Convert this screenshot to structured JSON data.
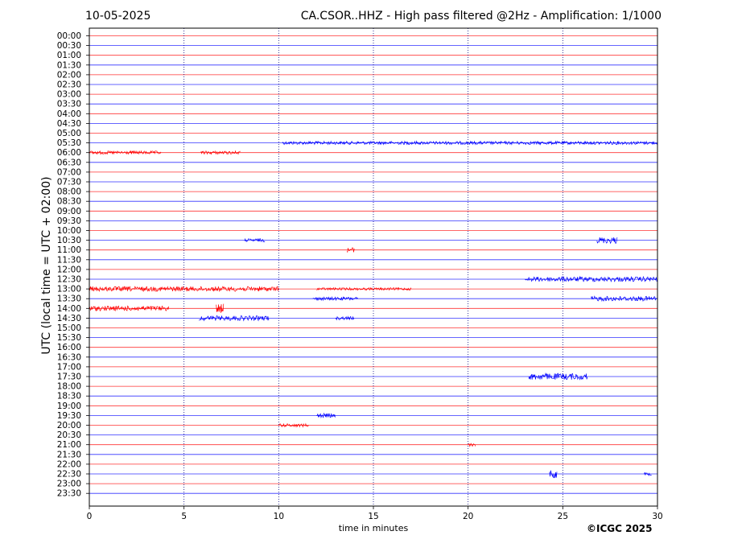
{
  "header": {
    "date": "10-05-2025",
    "title": "CA.CSOR..HHZ - High pass filtered @2Hz - Amplification: 1/1000"
  },
  "footer": {
    "copyright": "©ICGC 2025"
  },
  "chart_data": {
    "type": "line",
    "title": "CA.CSOR..HHZ - High pass filtered @2Hz - Amplification: 1/1000",
    "xlabel": "time in minutes",
    "ylabel": "UTC (local time = UTC + 02:00)",
    "xlim": [
      0,
      30
    ],
    "xticks": [
      0,
      5,
      10,
      15,
      20,
      25,
      30
    ],
    "vertical_gridlines_at": [
      5,
      10,
      15,
      20,
      25
    ],
    "row_labels": [
      "00:00",
      "00:30",
      "01:00",
      "01:30",
      "02:00",
      "02:30",
      "03:00",
      "03:30",
      "04:00",
      "04:30",
      "05:00",
      "05:30",
      "06:00",
      "06:30",
      "07:00",
      "07:30",
      "08:00",
      "08:30",
      "09:00",
      "09:30",
      "10:00",
      "10:30",
      "11:00",
      "11:30",
      "12:00",
      "12:30",
      "13:00",
      "13:30",
      "14:00",
      "14:30",
      "15:00",
      "15:30",
      "16:00",
      "16:30",
      "17:00",
      "17:30",
      "18:00",
      "18:30",
      "19:00",
      "19:30",
      "20:00",
      "20:30",
      "21:00",
      "21:30",
      "22:00",
      "22:30",
      "23:00",
      "23:30"
    ],
    "trace_colors": [
      "#ff0000",
      "#0000ff"
    ],
    "events": [
      {
        "row": "05:30",
        "start": 10.2,
        "end": 30,
        "amp": 2
      },
      {
        "row": "06:00",
        "start": 0,
        "end": 3.8,
        "amp": 2
      },
      {
        "row": "06:00",
        "start": 5.9,
        "end": 8,
        "amp": 2
      },
      {
        "row": "10:30",
        "start": 8.2,
        "end": 9.3,
        "amp": 2
      },
      {
        "row": "10:30",
        "start": 26.8,
        "end": 27.9,
        "amp": 4
      },
      {
        "row": "11:00",
        "start": 13.6,
        "end": 14,
        "amp": 3
      },
      {
        "row": "12:30",
        "start": 23,
        "end": 30,
        "amp": 3
      },
      {
        "row": "13:00",
        "start": 0,
        "end": 10,
        "amp": 3
      },
      {
        "row": "13:00",
        "start": 12,
        "end": 17,
        "amp": 1.5
      },
      {
        "row": "13:30",
        "start": 11.8,
        "end": 14.2,
        "amp": 2
      },
      {
        "row": "13:30",
        "start": 26.5,
        "end": 30,
        "amp": 3
      },
      {
        "row": "14:00",
        "start": 0,
        "end": 4.2,
        "amp": 3
      },
      {
        "row": "14:00",
        "start": 6.7,
        "end": 7.1,
        "amp": 6
      },
      {
        "row": "14:30",
        "start": 5.8,
        "end": 9.5,
        "amp": 3
      },
      {
        "row": "14:30",
        "start": 13,
        "end": 14,
        "amp": 2
      },
      {
        "row": "17:30",
        "start": 23.2,
        "end": 26.3,
        "amp": 4
      },
      {
        "row": "19:30",
        "start": 12,
        "end": 13,
        "amp": 2.5
      },
      {
        "row": "20:00",
        "start": 10,
        "end": 11.6,
        "amp": 2
      },
      {
        "row": "21:00",
        "start": 20,
        "end": 20.4,
        "amp": 2
      },
      {
        "row": "22:30",
        "start": 24.3,
        "end": 24.7,
        "amp": 5
      },
      {
        "row": "22:30",
        "start": 29.3,
        "end": 29.7,
        "amp": 2
      }
    ]
  }
}
